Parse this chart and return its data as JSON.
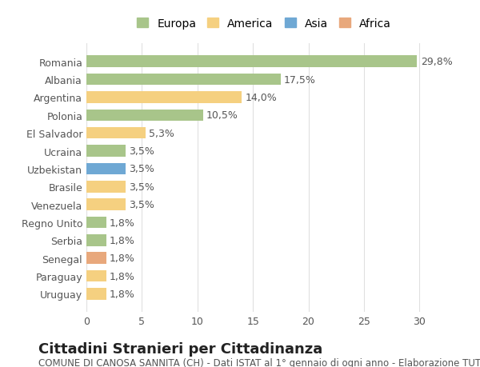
{
  "title": "Cittadini Stranieri per Cittadinanza",
  "subtitle": "COMUNE DI CANOSA SANNITA (CH) - Dati ISTAT al 1° gennaio di ogni anno - Elaborazione TUTTITALIA.IT",
  "categories": [
    "Romania",
    "Albania",
    "Argentina",
    "Polonia",
    "El Salvador",
    "Ucraina",
    "Uzbekistan",
    "Brasile",
    "Venezuela",
    "Regno Unito",
    "Serbia",
    "Senegal",
    "Paraguay",
    "Uruguay"
  ],
  "values": [
    29.8,
    17.5,
    14.0,
    10.5,
    5.3,
    3.5,
    3.5,
    3.5,
    3.5,
    1.8,
    1.8,
    1.8,
    1.8,
    1.8
  ],
  "labels": [
    "29,8%",
    "17,5%",
    "14,0%",
    "10,5%",
    "5,3%",
    "3,5%",
    "3,5%",
    "3,5%",
    "3,5%",
    "1,8%",
    "1,8%",
    "1,8%",
    "1,8%",
    "1,8%"
  ],
  "continents": [
    "Europa",
    "Europa",
    "America",
    "Europa",
    "America",
    "Europa",
    "Asia",
    "America",
    "America",
    "Europa",
    "Europa",
    "Africa",
    "America",
    "America"
  ],
  "continent_colors": {
    "Europa": "#a8c58a",
    "America": "#f5d080",
    "Asia": "#6fa8d4",
    "Africa": "#e8a87c"
  },
  "legend_order": [
    "Europa",
    "America",
    "Asia",
    "Africa"
  ],
  "xlim": [
    0,
    32
  ],
  "xticks": [
    0,
    5,
    10,
    15,
    20,
    25,
    30
  ],
  "background_color": "#ffffff",
  "grid_color": "#e0e0e0",
  "bar_height": 0.65,
  "label_fontsize": 9,
  "title_fontsize": 13,
  "subtitle_fontsize": 8.5,
  "tick_fontsize": 9,
  "legend_fontsize": 10
}
